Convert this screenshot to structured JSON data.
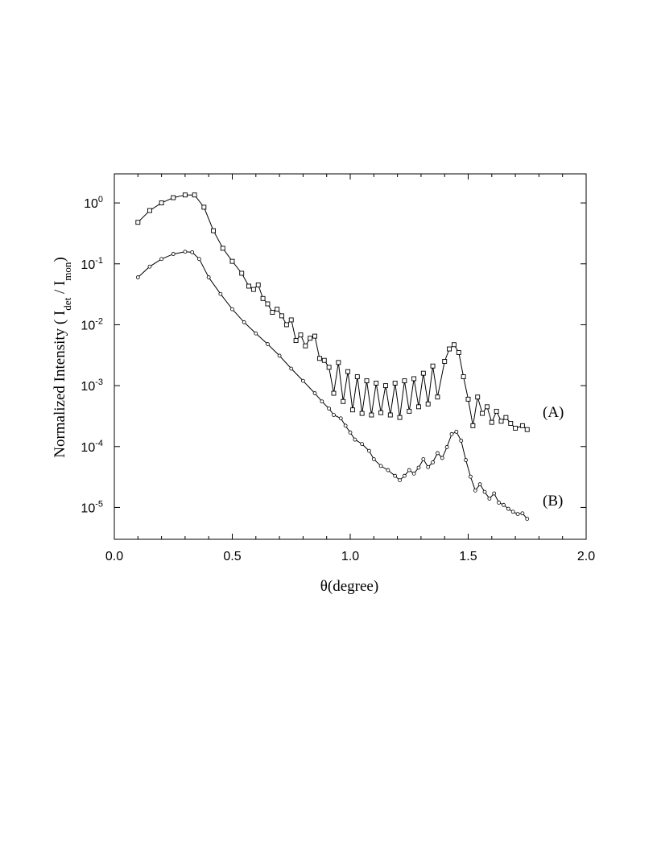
{
  "chart_data": {
    "type": "scatter",
    "title": "",
    "xlabel": "θ(degree)",
    "ylabel": {
      "prefix": "Normalized Intensity ( I",
      "sub1": "det",
      "mid": " / I",
      "sub2": "mon",
      "suffix": ")"
    },
    "xlim": [
      0.0,
      2.0
    ],
    "ylim": [
      3e-06,
      3
    ],
    "y_scale": "log",
    "grid": false,
    "x_ticks": [
      "0.0",
      "0.5",
      "1.0",
      "1.5",
      "2.0"
    ],
    "y_ticks": [
      {
        "base": "10",
        "exp": "0"
      },
      {
        "base": "10",
        "exp": "-1"
      },
      {
        "base": "10",
        "exp": "-2"
      },
      {
        "base": "10",
        "exp": "-3"
      },
      {
        "base": "10",
        "exp": "-4"
      },
      {
        "base": "10",
        "exp": "-5"
      }
    ],
    "series": [
      {
        "name": "(A)",
        "marker": "square",
        "points": [
          [
            0.1,
            0.48
          ],
          [
            0.15,
            0.75
          ],
          [
            0.2,
            1.0
          ],
          [
            0.25,
            1.22
          ],
          [
            0.3,
            1.35
          ],
          [
            0.34,
            1.35
          ],
          [
            0.38,
            0.85
          ],
          [
            0.42,
            0.35
          ],
          [
            0.46,
            0.18
          ],
          [
            0.5,
            0.11
          ],
          [
            0.54,
            0.07
          ],
          [
            0.57,
            0.043
          ],
          [
            0.59,
            0.038
          ],
          [
            0.61,
            0.045
          ],
          [
            0.63,
            0.027
          ],
          [
            0.65,
            0.022
          ],
          [
            0.67,
            0.016
          ],
          [
            0.69,
            0.018
          ],
          [
            0.71,
            0.014
          ],
          [
            0.73,
            0.01
          ],
          [
            0.75,
            0.012
          ],
          [
            0.77,
            0.0055
          ],
          [
            0.79,
            0.0068
          ],
          [
            0.81,
            0.0045
          ],
          [
            0.83,
            0.006
          ],
          [
            0.85,
            0.0065
          ],
          [
            0.87,
            0.0028
          ],
          [
            0.89,
            0.0026
          ],
          [
            0.91,
            0.002
          ],
          [
            0.93,
            0.00075
          ],
          [
            0.95,
            0.0024
          ],
          [
            0.97,
            0.00055
          ],
          [
            0.99,
            0.0017
          ],
          [
            1.01,
            0.0004
          ],
          [
            1.03,
            0.0014
          ],
          [
            1.05,
            0.00035
          ],
          [
            1.07,
            0.0012
          ],
          [
            1.09,
            0.00033
          ],
          [
            1.11,
            0.0011
          ],
          [
            1.13,
            0.00036
          ],
          [
            1.15,
            0.001
          ],
          [
            1.17,
            0.00033
          ],
          [
            1.19,
            0.0011
          ],
          [
            1.21,
            0.0003
          ],
          [
            1.23,
            0.0012
          ],
          [
            1.25,
            0.00038
          ],
          [
            1.27,
            0.0013
          ],
          [
            1.29,
            0.00045
          ],
          [
            1.31,
            0.0016
          ],
          [
            1.33,
            0.0005
          ],
          [
            1.35,
            0.0021
          ],
          [
            1.37,
            0.00065
          ],
          [
            1.4,
            0.0025
          ],
          [
            1.42,
            0.004
          ],
          [
            1.44,
            0.0047
          ],
          [
            1.46,
            0.0035
          ],
          [
            1.48,
            0.0014
          ],
          [
            1.5,
            0.0006
          ],
          [
            1.52,
            0.00022
          ],
          [
            1.54,
            0.00065
          ],
          [
            1.56,
            0.00035
          ],
          [
            1.58,
            0.00045
          ],
          [
            1.6,
            0.00025
          ],
          [
            1.62,
            0.00038
          ],
          [
            1.64,
            0.00026
          ],
          [
            1.66,
            0.0003
          ],
          [
            1.68,
            0.00024
          ],
          [
            1.7,
            0.0002
          ],
          [
            1.73,
            0.00022
          ],
          [
            1.75,
            0.00019
          ]
        ]
      },
      {
        "name": "(B)",
        "marker": "circle",
        "points": [
          [
            0.1,
            0.06
          ],
          [
            0.15,
            0.09
          ],
          [
            0.2,
            0.12
          ],
          [
            0.25,
            0.145
          ],
          [
            0.3,
            0.158
          ],
          [
            0.33,
            0.155
          ],
          [
            0.36,
            0.12
          ],
          [
            0.4,
            0.06
          ],
          [
            0.45,
            0.032
          ],
          [
            0.5,
            0.018
          ],
          [
            0.55,
            0.011
          ],
          [
            0.6,
            0.0072
          ],
          [
            0.65,
            0.0048
          ],
          [
            0.7,
            0.0031
          ],
          [
            0.75,
            0.0019
          ],
          [
            0.8,
            0.0012
          ],
          [
            0.85,
            0.00075
          ],
          [
            0.88,
            0.00055
          ],
          [
            0.91,
            0.00042
          ],
          [
            0.93,
            0.00033
          ],
          [
            0.96,
            0.00029
          ],
          [
            0.98,
            0.00022
          ],
          [
            1.0,
            0.00017
          ],
          [
            1.02,
            0.00013
          ],
          [
            1.05,
            0.00011
          ],
          [
            1.08,
            8.5e-05
          ],
          [
            1.1,
            6.2e-05
          ],
          [
            1.13,
            4.8e-05
          ],
          [
            1.16,
            4.1e-05
          ],
          [
            1.19,
            3.3e-05
          ],
          [
            1.21,
            2.8e-05
          ],
          [
            1.23,
            3.3e-05
          ],
          [
            1.25,
            4.1e-05
          ],
          [
            1.27,
            3.6e-05
          ],
          [
            1.29,
            4.5e-05
          ],
          [
            1.31,
            6.2e-05
          ],
          [
            1.33,
            4.6e-05
          ],
          [
            1.35,
            5.5e-05
          ],
          [
            1.37,
            7.8e-05
          ],
          [
            1.39,
            6.5e-05
          ],
          [
            1.41,
            9.8e-05
          ],
          [
            1.43,
            0.00016
          ],
          [
            1.45,
            0.000175
          ],
          [
            1.47,
            0.000125
          ],
          [
            1.49,
            6e-05
          ],
          [
            1.51,
            3.2e-05
          ],
          [
            1.53,
            1.9e-05
          ],
          [
            1.55,
            2.4e-05
          ],
          [
            1.57,
            1.8e-05
          ],
          [
            1.59,
            1.4e-05
          ],
          [
            1.61,
            1.7e-05
          ],
          [
            1.63,
            1.2e-05
          ],
          [
            1.65,
            1.1e-05
          ],
          [
            1.67,
            9.5e-06
          ],
          [
            1.69,
            8.5e-06
          ],
          [
            1.71,
            7.8e-06
          ],
          [
            1.73,
            8e-06
          ],
          [
            1.75,
            6.5e-06
          ]
        ]
      }
    ],
    "annotations": [
      "(A)",
      "(B)"
    ]
  }
}
